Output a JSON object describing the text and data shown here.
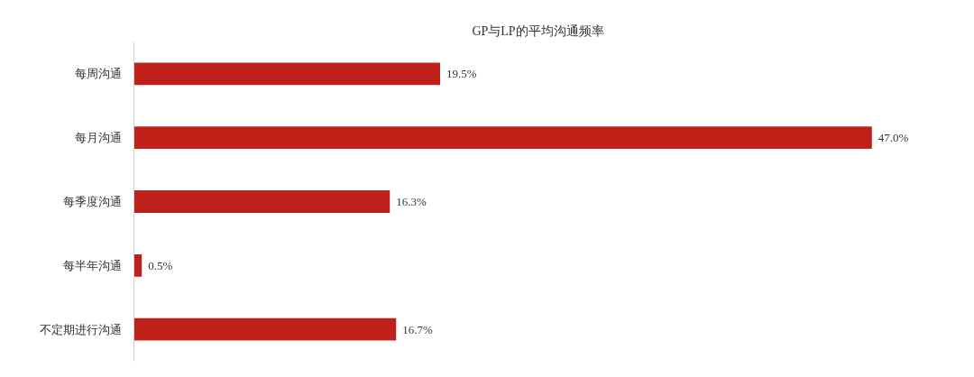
{
  "chart_data": {
    "type": "bar",
    "orientation": "horizontal",
    "title": "GP与LP的平均沟通频率",
    "categories": [
      "每周沟通",
      "每月沟通",
      "每季度沟通",
      "每半年沟通",
      "不定期进行沟通"
    ],
    "values": [
      19.5,
      47.0,
      16.3,
      0.5,
      16.7
    ],
    "value_labels": [
      "19.5%",
      "47.0%",
      "16.3%",
      "0.5%",
      "16.7%"
    ],
    "color": "#c0201a",
    "grid": false
  }
}
